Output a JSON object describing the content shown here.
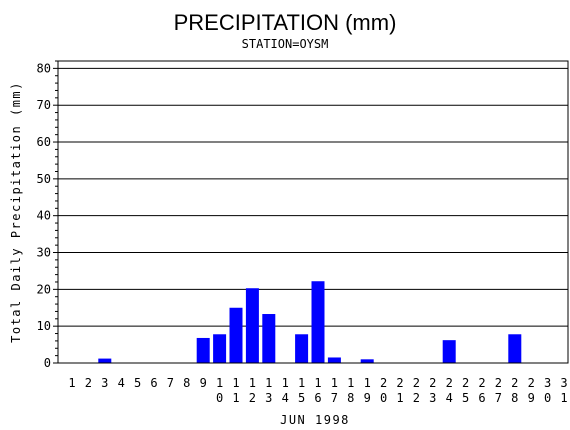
{
  "chart_data": {
    "type": "bar",
    "title": "PRECIPITATION (mm)",
    "subtitle": "STATION=OYSM",
    "xlabel": "JUN 1998",
    "ylabel": "Total Daily Precipitation (mm)",
    "ylim": [
      0,
      82
    ],
    "yticks": [
      0,
      10,
      20,
      30,
      40,
      50,
      60,
      70,
      80
    ],
    "grid": true,
    "bar_color": "#0000ff",
    "categories": [
      "1",
      "2",
      "3",
      "4",
      "5",
      "6",
      "7",
      "8",
      "9",
      "10",
      "11",
      "12",
      "13",
      "14",
      "15",
      "16",
      "17",
      "18",
      "19",
      "20",
      "21",
      "22",
      "23",
      "24",
      "25",
      "26",
      "27",
      "28",
      "29",
      "30",
      "31"
    ],
    "values": [
      0,
      0,
      1.2,
      0,
      0,
      0,
      0,
      0,
      6.8,
      7.8,
      15.0,
      20.3,
      13.3,
      0,
      7.8,
      22.2,
      1.5,
      0,
      1.0,
      0,
      0,
      0,
      0,
      6.2,
      0,
      0,
      0,
      7.8,
      0,
      0,
      0
    ]
  }
}
